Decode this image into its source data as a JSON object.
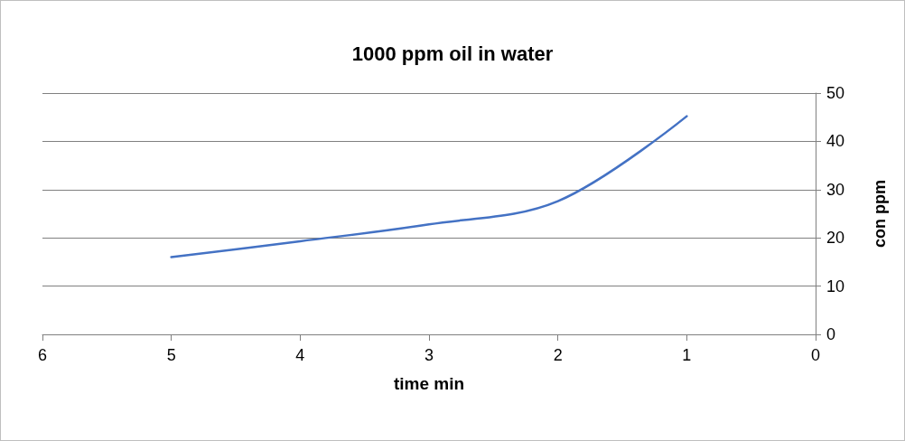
{
  "chart_data": {
    "type": "line",
    "title": "1000 ppm oil in water",
    "xlabel": "time min",
    "ylabel": "con ppm",
    "x": [
      5,
      4,
      3,
      2,
      1
    ],
    "series": [
      {
        "color": "#4472c4",
        "values": [
          16,
          19.3,
          22.8,
          27.6,
          45.2
        ]
      }
    ],
    "xlim": [
      6,
      0
    ],
    "xticks": [
      0,
      1,
      2,
      3,
      4,
      5,
      6
    ],
    "ylim": [
      0,
      50
    ],
    "yticks": [
      0,
      10,
      20,
      30,
      40,
      50
    ],
    "grid": "y",
    "marker": "none",
    "line_style": "solid"
  }
}
